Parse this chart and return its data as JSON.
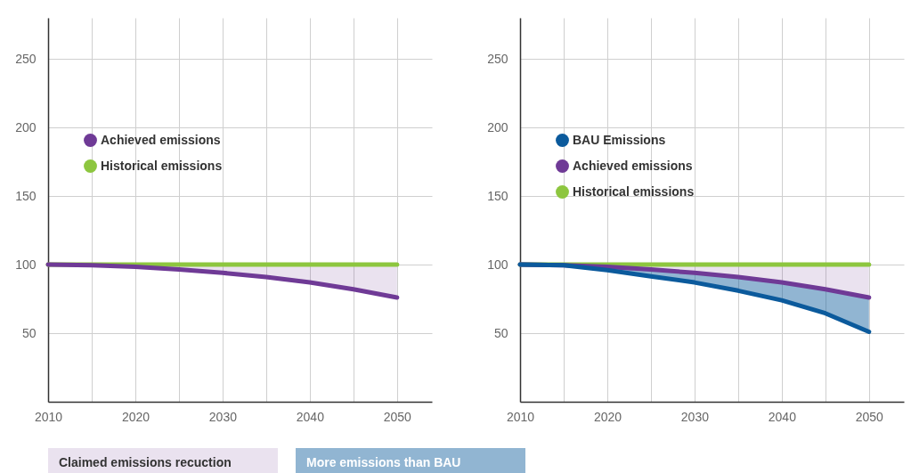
{
  "chart_data": [
    {
      "type": "line",
      "x": [
        2010,
        2015,
        2020,
        2025,
        2030,
        2035,
        2040,
        2045,
        2050
      ],
      "xlim": [
        2010,
        2054
      ],
      "ylim": [
        0,
        280
      ],
      "xticks": [
        2010,
        {
          "value": 2015,
          "label": null
        },
        2020,
        {
          "value": 2025,
          "label": null
        },
        2030,
        {
          "value": 2035,
          "label": null
        },
        2040,
        {
          "value": 2045,
          "label": null
        },
        2050
      ],
      "yticks": [
        50,
        100,
        150,
        200,
        250
      ],
      "grid": true,
      "legend": "top left",
      "marker": "none",
      "line_style": "solid",
      "series": [
        {
          "name": "Achieved emissions",
          "color": "#6f3a96",
          "values": [
            100,
            99.5,
            98.5,
            96.5,
            94,
            91,
            87,
            82,
            76
          ],
          "lower": [
            100,
            99.5,
            98.5,
            96.5,
            94,
            91,
            87,
            82,
            76
          ],
          "upper": [
            100,
            100,
            100,
            100,
            100,
            100,
            100,
            100,
            100
          ]
        },
        {
          "name": "Historical emissions",
          "color": "#8dc63f",
          "values": [
            100,
            100,
            100,
            100,
            100,
            100,
            100,
            100,
            100
          ]
        }
      ]
    },
    {
      "type": "line",
      "x": [
        2010,
        2015,
        2020,
        2025,
        2030,
        2035,
        2040,
        2045,
        2050
      ],
      "xlim": [
        2010,
        2054
      ],
      "ylim": [
        0,
        280
      ],
      "xticks": [
        2010,
        {
          "value": 2015,
          "label": null
        },
        2020,
        {
          "value": 2025,
          "label": null
        },
        2030,
        {
          "value": 2035,
          "label": null
        },
        2040,
        {
          "value": 2045,
          "label": null
        },
        2050
      ],
      "yticks": [
        50,
        100,
        150,
        200,
        250
      ],
      "grid": true,
      "legend": "top left",
      "marker": "none",
      "line_style": "solid",
      "annotations": [
        "Claimed emissions recuction",
        "More emissions than BAU"
      ],
      "series": [
        {
          "name": "BAU Emissions",
          "color": "#0b5a9c",
          "values": [
            100,
            99.5,
            96,
            91.5,
            87,
            81,
            74,
            64.5,
            51
          ],
          "lower": [
            100,
            99.5,
            96,
            91.5,
            87,
            81,
            74,
            64.5,
            51
          ],
          "upper": [
            100,
            99.5,
            98.5,
            96.5,
            94,
            91,
            87,
            82,
            76
          ]
        },
        {
          "name": "Achieved emissions",
          "color": "#6f3a96",
          "values": [
            100,
            99.5,
            98.5,
            96.5,
            94,
            91,
            87,
            82,
            76
          ],
          "lower": [
            100,
            99.5,
            98.5,
            96.5,
            94,
            91,
            87,
            82,
            76
          ],
          "upper": [
            100,
            100,
            100,
            100,
            100,
            100,
            100,
            100,
            100
          ]
        },
        {
          "name": "Historical emissions",
          "color": "#8dc63f",
          "values": [
            100,
            100,
            100,
            100,
            100,
            100,
            100,
            100,
            100
          ]
        }
      ]
    }
  ]
}
